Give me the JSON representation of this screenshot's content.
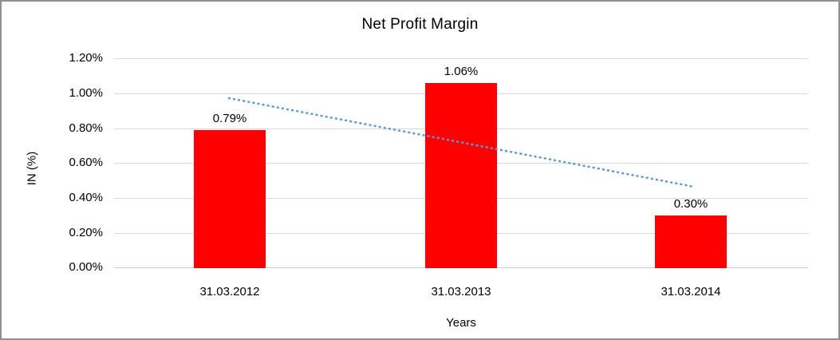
{
  "chart_data": {
    "type": "bar",
    "title": "Net Profit Margin",
    "xlabel": "Years",
    "ylabel": "IN (%)",
    "categories": [
      "31.03.2012",
      "31.03.2013",
      "31.03.2014"
    ],
    "values": [
      0.79,
      1.06,
      0.3
    ],
    "data_labels": [
      "0.79%",
      "1.06%",
      "0.30%"
    ],
    "ylim": [
      0,
      1.2
    ],
    "ytick_step": 0.2,
    "ytick_labels": [
      "1.20%",
      "1.00%",
      "0.80%",
      "0.60%",
      "0.40%",
      "0.20%",
      "0.00%"
    ],
    "grid": "horizontal",
    "legend": "none",
    "bar_color": "#ff0000",
    "gridline_color": "#d9d9d9",
    "trendline": {
      "type": "linear",
      "style": "dotted",
      "color": "#5b9bd5",
      "start_value_pct": 0.97,
      "end_value_pct": 0.46
    }
  }
}
